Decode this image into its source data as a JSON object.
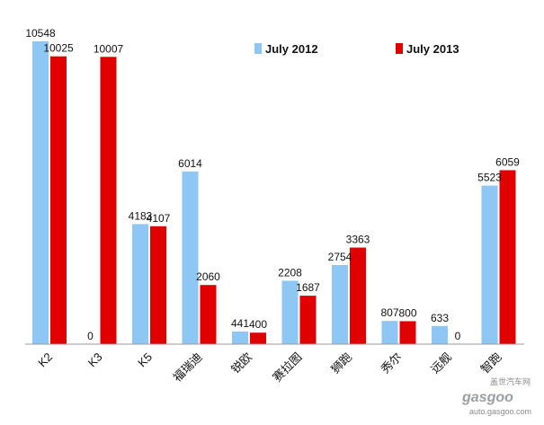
{
  "chart_data": {
    "type": "bar",
    "title": "",
    "xlabel": "",
    "ylabel": "",
    "ylim": [
      0,
      11000
    ],
    "grid": false,
    "legend_position": "top-right",
    "categories": [
      "K2",
      "K3",
      "K5",
      "福瑞迪",
      "锐欧",
      "赛拉图",
      "狮跑",
      "秀尔",
      "远舰",
      "智跑"
    ],
    "series": [
      {
        "name": "July 2012",
        "color": "#8ec6f4",
        "values": [
          10548,
          0,
          4183,
          6014,
          441,
          2208,
          2754,
          807,
          633,
          5523
        ]
      },
      {
        "name": "July 2013",
        "color": "#e00000",
        "values": [
          10025,
          10007,
          4107,
          2060,
          400,
          1687,
          3363,
          800,
          0,
          6059
        ]
      }
    ]
  },
  "watermark": {
    "logo": "gasgoo",
    "url": "auto.gasgoo.com",
    "cn": "盖世汽车网"
  }
}
